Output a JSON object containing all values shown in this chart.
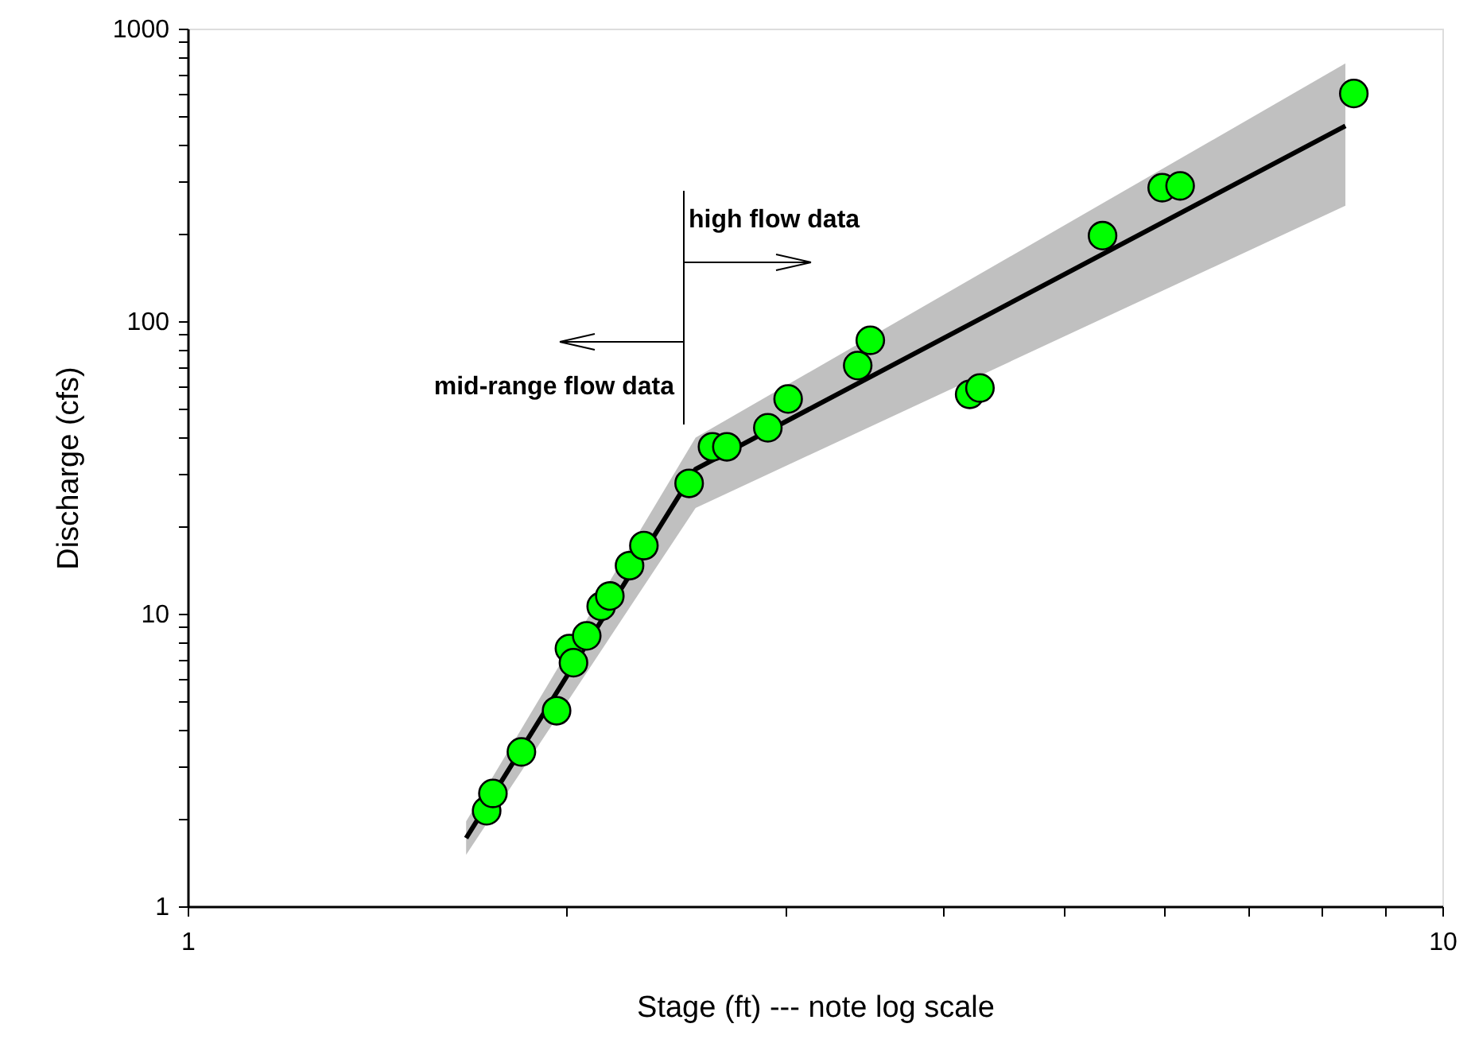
{
  "chart_data": {
    "type": "scatter",
    "xlabel": "Stage (ft) --- note log scale",
    "ylabel": "Discharge (cfs)",
    "log": "xy",
    "grid": false,
    "xlim": [
      1,
      10
    ],
    "ylim": [
      1,
      1000
    ],
    "xticks": [
      1,
      {
        "value": 2,
        "label": null
      },
      {
        "value": 3,
        "label": null
      },
      {
        "value": 4,
        "label": null
      },
      {
        "value": 5,
        "label": null
      },
      {
        "value": 6,
        "label": null
      },
      {
        "value": 7,
        "label": null
      },
      {
        "value": 8,
        "label": null
      },
      {
        "value": 9,
        "label": null
      },
      10
    ],
    "yticks": [
      1,
      {
        "value": 2,
        "label": null
      },
      {
        "value": 3,
        "label": null
      },
      {
        "value": 4,
        "label": null
      },
      {
        "value": 5,
        "label": null
      },
      {
        "value": 6,
        "label": null
      },
      {
        "value": 7,
        "label": null
      },
      {
        "value": 8,
        "label": null
      },
      {
        "value": 9,
        "label": null
      },
      10,
      {
        "value": 20,
        "label": null
      },
      {
        "value": 30,
        "label": null
      },
      {
        "value": 40,
        "label": null
      },
      {
        "value": 50,
        "label": null
      },
      {
        "value": 60,
        "label": null
      },
      {
        "value": 70,
        "label": null
      },
      {
        "value": 80,
        "label": null
      },
      {
        "value": 90,
        "label": null
      },
      100,
      {
        "value": 200,
        "label": null
      },
      {
        "value": 300,
        "label": null
      },
      {
        "value": 400,
        "label": null
      },
      {
        "value": 500,
        "label": null
      },
      {
        "value": 600,
        "label": null
      },
      {
        "value": 700,
        "label": null
      },
      {
        "value": 800,
        "label": null
      },
      {
        "value": 900,
        "label": null
      },
      1000
    ],
    "series": [
      {
        "type": "line",
        "marker": "none",
        "color": "#000000",
        "x": [
          1.667,
          2.54,
          8.37
        ],
        "values": [
          1.71,
          31.2,
          465
        ],
        "lower": [
          1.5,
          23,
          248
        ],
        "upper": [
          1.95,
          40,
          760
        ]
      },
      {
        "marker": "circle",
        "color": "#00ff00",
        "x": [
          1.731,
          1.751,
          1.845,
          1.968,
          2.015,
          2.03,
          2.08,
          2.136,
          2.17,
          2.25,
          2.31,
          2.51,
          2.62,
          2.69,
          2.9,
          3.01,
          3.42,
          3.5,
          4.2,
          4.28,
          5.36,
          5.98,
          6.18,
          8.5
        ],
        "values": [
          2.12,
          2.43,
          3.37,
          4.66,
          7.6,
          6.8,
          8.4,
          10.6,
          11.5,
          14.6,
          17.1,
          27.9,
          37.2,
          37.2,
          43.2,
          54.2,
          70.5,
          86,
          56.2,
          59.1,
          196,
          286,
          290,
          600
        ]
      }
    ],
    "annotations": [
      "high flow data",
      "mid-range flow data"
    ]
  }
}
